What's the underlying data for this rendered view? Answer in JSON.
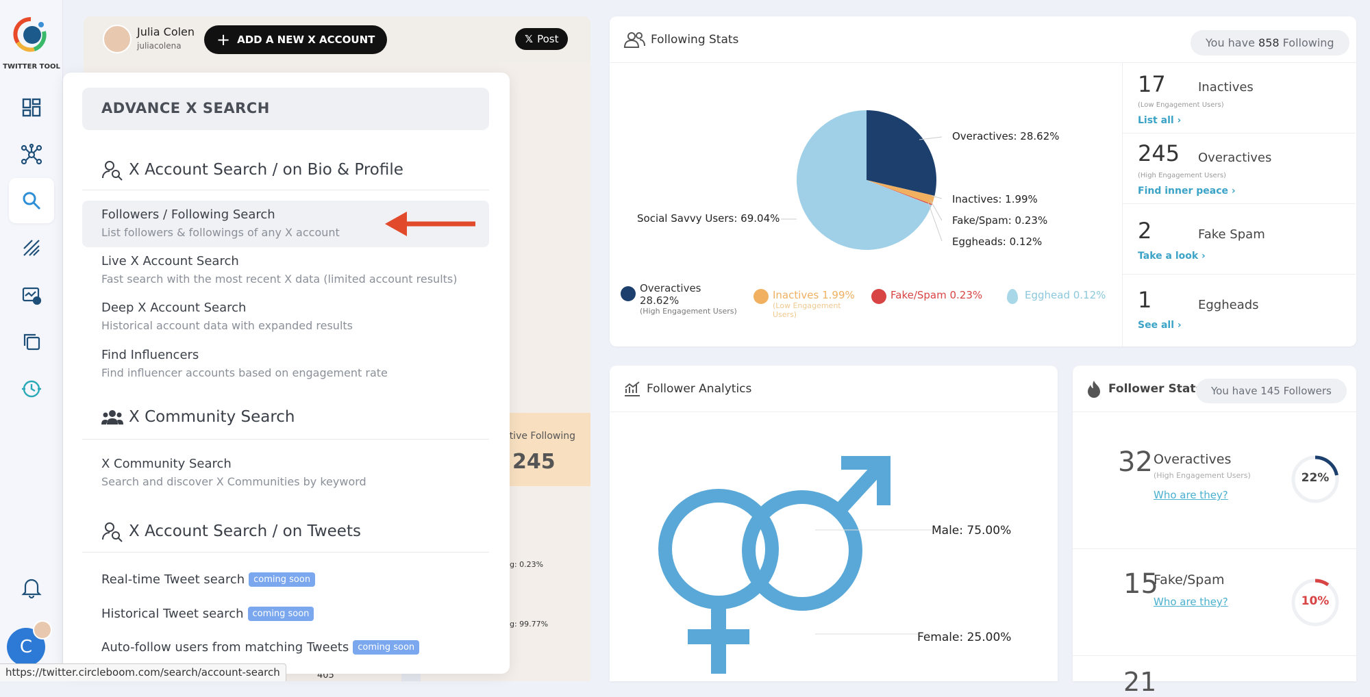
{
  "app": {
    "brand": "TWITTER TOOL"
  },
  "user": {
    "name": "Julia Colen",
    "handle": "juliacolena",
    "avatar_initial": "C"
  },
  "topbar": {
    "add_account": "ADD A NEW X ACCOUNT",
    "post_button": "Post",
    "x_glyph": "𝕏"
  },
  "sidebar": {
    "items": [
      "dashboard-icon",
      "network-icon",
      "search-icon",
      "analytics-icon",
      "performance-icon",
      "copy-icon",
      "history-icon",
      "bell-icon"
    ]
  },
  "under": {
    "active_following_label": "ctive Following",
    "active_following_value": "245",
    "f1": "g: 0.23%",
    "f2": "g: 99.77%",
    "f3": "405"
  },
  "dropdown": {
    "title": "ADVANCE X SEARCH",
    "section1": "X Account Search / on Bio & Profile",
    "items1": [
      {
        "title": "Followers / Following Search",
        "desc": "List followers & followings of any X account"
      },
      {
        "title": "Live X Account Search",
        "desc": "Fast search with the most recent X data (limited account results)"
      },
      {
        "title": "Deep X Account Search",
        "desc": "Historical account data with expanded results"
      },
      {
        "title": "Find Influencers",
        "desc": "Find influencer accounts based on engagement rate"
      }
    ],
    "section2": "X Community Search",
    "items2": [
      {
        "title": "X Community Search",
        "desc": "Search and discover X Communities by keyword"
      }
    ],
    "section3": "X Account Search / on Tweets",
    "items3": [
      {
        "title": "Real-time Tweet search",
        "badge": "coming soon"
      },
      {
        "title": "Historical Tweet search",
        "badge": "coming soon"
      },
      {
        "title": "Auto-follow users from matching Tweets",
        "badge": "coming soon"
      }
    ]
  },
  "following_stats": {
    "title": "Following Stats",
    "pill_prefix": "You have ",
    "pill_count": "858",
    "pill_suffix": " Following",
    "pie_labels": {
      "overactives": "Overactives: 28.62%",
      "inactives": "Inactives: 1.99%",
      "fake": "Fake/Spam: 0.23%",
      "eggheads": "Eggheads: 0.12%",
      "social": "Social Savvy Users: 69.04%"
    },
    "legend": {
      "overactives_name": "Overactives",
      "overactives_pct": "28.62%",
      "overactives_sub": "(High Engagement Users)",
      "inactives": "Inactives 1.99%",
      "inactives_sub": "(Low Engagement Users)",
      "fake": "Fake/Spam 0.23%",
      "egghead": "Egghead 0.12%"
    },
    "stats": [
      {
        "num": "17",
        "label": "Inactives",
        "sub": "(Low Engagement Users)",
        "link": "List all ›"
      },
      {
        "num": "245",
        "label": "Overactives",
        "sub": "(High Engagement Users)",
        "link": "Find inner peace ›"
      },
      {
        "num": "2",
        "label": "Fake Spam",
        "sub": "",
        "link": "Take a look ›"
      },
      {
        "num": "1",
        "label": "Eggheads",
        "sub": "",
        "link": "See all ›"
      }
    ],
    "colors": {
      "overactives": "#1d3f6e",
      "inactives": "#f0b060",
      "fake": "#d84343",
      "eggheads": "#a8cde0",
      "social": "#9fd0e8"
    }
  },
  "chart_data": {
    "type": "pie",
    "categories": [
      "Overactives",
      "Inactives",
      "Fake/Spam",
      "Eggheads",
      "Social Savvy Users"
    ],
    "values": [
      28.62,
      1.99,
      0.23,
      0.12,
      69.04
    ]
  },
  "follower_analytics": {
    "title": "Follower Analytics",
    "male": "Male: 75.00%",
    "female": "Female: 25.00%",
    "male_value": 75.0,
    "female_value": 25.0
  },
  "follower_stats": {
    "title": "Follower Stats",
    "pill": "You have 145 Followers",
    "rows": [
      {
        "num": "32",
        "label": "Overactives",
        "sub": "(High Engagement Users)",
        "link": "Who are they?",
        "pct": "22%",
        "pct_value": 22,
        "color": "#1d3f6e"
      },
      {
        "num": "15",
        "label": "Fake/Spam",
        "sub": "",
        "link": "Who are they?",
        "pct": "10%",
        "pct_value": 10,
        "color": "#d84343"
      }
    ],
    "partial_num": "21"
  },
  "status_url": "https://twitter.circleboom.com/search/account-search"
}
